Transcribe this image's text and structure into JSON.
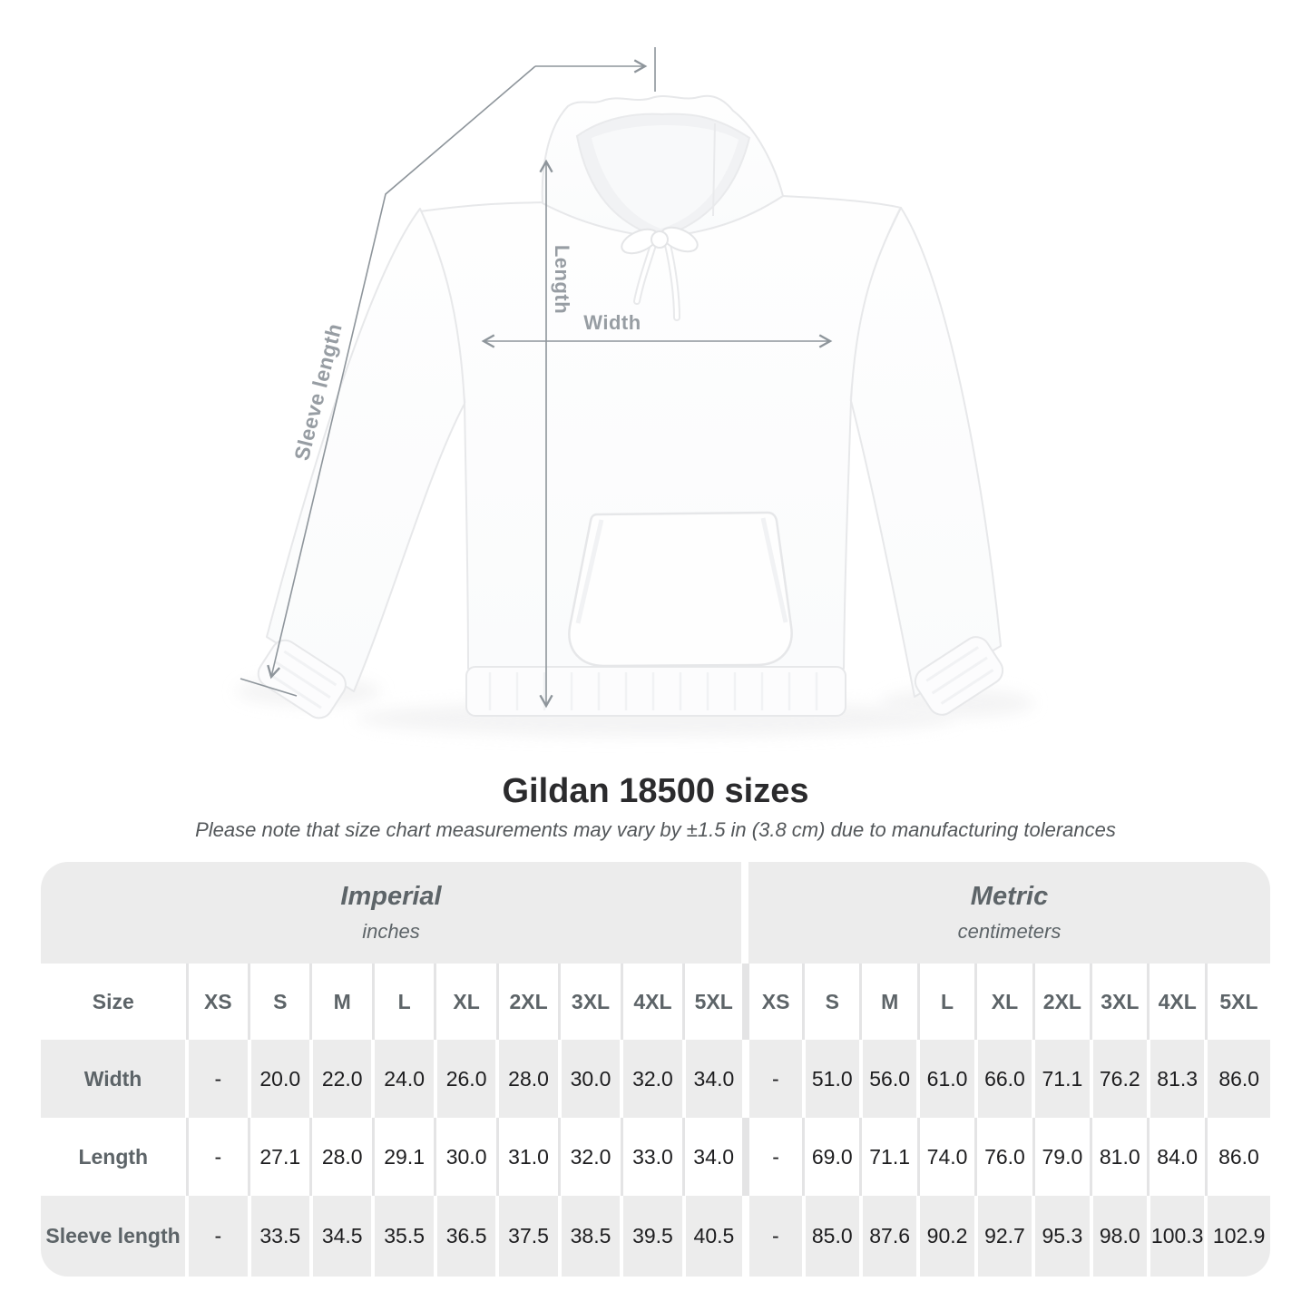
{
  "title": "Gildan 18500 sizes",
  "subtitle": "Please note that size chart measurements may vary by ±1.5 in (3.8 cm) due to manufacturing tolerances",
  "diagram": {
    "length_label": "Length",
    "width_label": "Width",
    "sleeve_label": "Sleeve length"
  },
  "table": {
    "size_header": "Size",
    "unit_groups": [
      {
        "name": "Imperial",
        "unit": "inches"
      },
      {
        "name": "Metric",
        "unit": "centimeters"
      }
    ],
    "sizes": [
      "XS",
      "S",
      "M",
      "L",
      "XL",
      "2XL",
      "3XL",
      "4XL",
      "5XL"
    ],
    "rows": [
      {
        "label": "Width",
        "imperial": [
          "-",
          "20.0",
          "22.0",
          "24.0",
          "26.0",
          "28.0",
          "30.0",
          "32.0",
          "34.0"
        ],
        "metric": [
          "-",
          "51.0",
          "56.0",
          "61.0",
          "66.0",
          "71.1",
          "76.2",
          "81.3",
          "86.0"
        ]
      },
      {
        "label": "Length",
        "imperial": [
          "-",
          "27.1",
          "28.0",
          "29.1",
          "30.0",
          "31.0",
          "32.0",
          "33.0",
          "34.0"
        ],
        "metric": [
          "-",
          "69.0",
          "71.1",
          "74.0",
          "76.0",
          "79.0",
          "81.0",
          "84.0",
          "86.0"
        ]
      },
      {
        "label": "Sleeve length",
        "imperial": [
          "-",
          "33.5",
          "34.5",
          "35.5",
          "36.5",
          "37.5",
          "38.5",
          "39.5",
          "40.5"
        ],
        "metric": [
          "-",
          "85.0",
          "87.6",
          "90.2",
          "92.7",
          "95.3",
          "98.0",
          "100.3",
          "102.9"
        ]
      }
    ]
  },
  "colors": {
    "panel_gray": "#ececec",
    "header_text": "#5d6468",
    "value_text": "#1d1d1f",
    "measure_line": "#8e959b",
    "measure_label": "#979da3"
  }
}
